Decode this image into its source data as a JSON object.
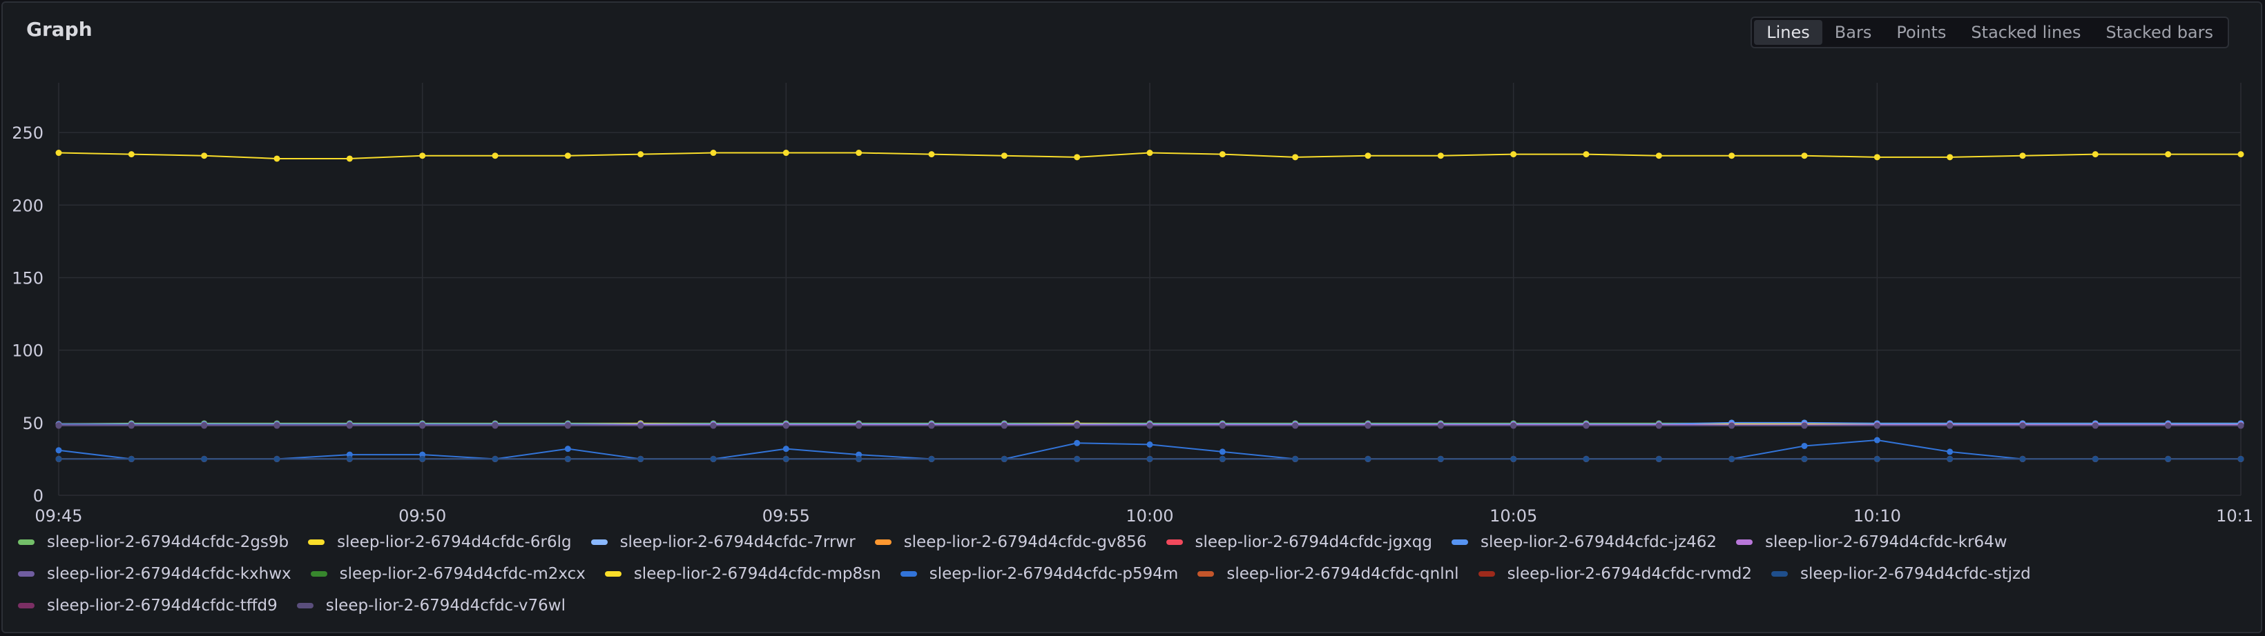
{
  "panel": {
    "title": "Graph"
  },
  "view_toggle": {
    "options": [
      "Lines",
      "Bars",
      "Points",
      "Stacked lines",
      "Stacked bars"
    ],
    "selected": "Lines"
  },
  "chart_data": {
    "type": "line",
    "title": "",
    "xlabel": "",
    "ylabel": "",
    "x": [
      "09:45",
      "09:46",
      "09:47",
      "09:48",
      "09:49",
      "09:50",
      "09:51",
      "09:52",
      "09:53",
      "09:54",
      "09:55",
      "09:56",
      "09:57",
      "09:58",
      "09:59",
      "10:00",
      "10:01",
      "10:02",
      "10:03",
      "10:04",
      "10:05",
      "10:06",
      "10:07",
      "10:08",
      "10:09",
      "10:10",
      "10:11",
      "10:12",
      "10:13",
      "10:14",
      "10:15"
    ],
    "x_tick_labels": [
      "09:45",
      "09:50",
      "09:55",
      "10:00",
      "10:05",
      "10:10",
      "10:1"
    ],
    "y_ticks": [
      0,
      50,
      100,
      150,
      200,
      250
    ],
    "ylim": [
      0,
      270
    ],
    "grid": true,
    "legend_position": "bottom",
    "series": [
      {
        "name": "sleep-lior-2-6794d4cfdc-2gs9b",
        "color": "#73bf69",
        "values": [
          49,
          49.5,
          49.5,
          49.5,
          49.5,
          49.5,
          49.5,
          49.5,
          49.5,
          49.5,
          49.5,
          49.5,
          49.5,
          49.5,
          49.5,
          49.5,
          49.5,
          49.5,
          49.5,
          49.5,
          49.5,
          49.5,
          49.5,
          49.5,
          49.5,
          49.5,
          49.5,
          49.5,
          49.5,
          49.5,
          49.5
        ]
      },
      {
        "name": "sleep-lior-2-6794d4cfdc-6r6lg",
        "color": "#fade2a",
        "values": [
          49,
          49,
          49,
          49,
          49,
          49,
          49,
          49,
          49.5,
          49,
          49,
          49,
          49,
          49,
          49.5,
          49,
          49,
          49,
          49,
          49,
          49,
          49,
          49,
          49,
          49,
          49,
          49,
          49,
          49,
          49,
          49
        ]
      },
      {
        "name": "sleep-lior-2-6794d4cfdc-7rrwr",
        "color": "#8ab8ff",
        "values": [
          48.5,
          48.5,
          48.5,
          48.5,
          48.5,
          48.5,
          48.5,
          48.5,
          48.5,
          48.5,
          48.5,
          48.5,
          48.5,
          48.5,
          48.5,
          48.5,
          48.5,
          48.5,
          48.5,
          48.5,
          48.5,
          48.5,
          48.5,
          48.5,
          48.5,
          48.5,
          48.5,
          48.5,
          48.5,
          48.5,
          48.5
        ]
      },
      {
        "name": "sleep-lior-2-6794d4cfdc-gv856",
        "color": "#ff9830",
        "values": [
          25,
          25,
          25,
          25,
          25,
          25,
          25,
          25,
          25,
          25,
          25,
          25,
          25,
          25,
          25,
          25,
          25,
          25,
          25,
          25,
          25,
          25,
          25,
          25,
          25,
          25,
          25,
          25,
          25,
          25,
          25
        ]
      },
      {
        "name": "sleep-lior-2-6794d4cfdc-jgxqg",
        "color": "#f2495c",
        "values": [
          25,
          25,
          25,
          25,
          25,
          25,
          25,
          25,
          25,
          25,
          25,
          25,
          25,
          25,
          25,
          25,
          25,
          25,
          25,
          25,
          25,
          25,
          25,
          25,
          25,
          25,
          25,
          25,
          25,
          25,
          25
        ]
      },
      {
        "name": "sleep-lior-2-6794d4cfdc-jz462",
        "color": "#5794f2",
        "values": [
          49,
          49,
          49,
          49,
          49,
          49,
          49,
          49,
          49,
          49,
          49,
          49,
          49,
          49,
          49,
          49,
          49,
          49,
          49,
          49,
          49,
          49,
          49,
          50,
          50,
          49.5,
          49.5,
          49.5,
          49.5,
          49.5,
          49.5
        ]
      },
      {
        "name": "sleep-lior-2-6794d4cfdc-kr64w",
        "color": "#b877d9",
        "values": [
          48.5,
          48.5,
          48.5,
          48.5,
          48.5,
          48.5,
          48.5,
          48.5,
          48.5,
          48.5,
          48.5,
          48.5,
          48.5,
          48.5,
          48.5,
          48.5,
          48.5,
          48.5,
          48.5,
          48.5,
          48.5,
          48.5,
          48.5,
          48.5,
          48.5,
          48.5,
          48.5,
          48.5,
          48.5,
          48.5,
          48.5
        ]
      },
      {
        "name": "sleep-lior-2-6794d4cfdc-kxhwx",
        "color": "#705da0",
        "values": [
          48.5,
          48.5,
          48.5,
          48.5,
          48.5,
          48.5,
          48.5,
          48.5,
          48,
          48,
          48,
          48,
          48,
          48,
          48,
          48,
          48,
          48,
          48,
          48,
          48,
          48,
          48,
          48,
          48,
          48,
          48,
          48,
          48,
          48,
          48
        ]
      },
      {
        "name": "sleep-lior-2-6794d4cfdc-m2xcx",
        "color": "#37872d",
        "values": [
          25,
          25,
          25,
          25,
          25,
          25,
          25,
          25,
          25,
          25,
          25,
          25,
          25,
          25,
          25,
          25,
          25,
          25,
          25,
          25,
          25,
          25,
          25,
          25,
          25,
          25,
          25,
          25,
          25,
          25,
          25
        ]
      },
      {
        "name": "sleep-lior-2-6794d4cfdc-mp8sn",
        "color": "#fade2a",
        "values": [
          236,
          235,
          234,
          232,
          232,
          234,
          234,
          234,
          235,
          236,
          236,
          236,
          235,
          234,
          233,
          236,
          235,
          233,
          234,
          234,
          235,
          235,
          234,
          234,
          234,
          233,
          233,
          234,
          235,
          235,
          235
        ]
      },
      {
        "name": "sleep-lior-2-6794d4cfdc-p594m",
        "color": "#3274d9",
        "values": [
          31,
          25,
          25,
          25,
          28,
          28,
          25,
          32,
          25,
          25,
          32,
          28,
          25,
          25,
          36,
          35,
          30,
          25,
          25,
          25,
          25,
          25,
          25,
          25,
          34,
          38,
          30,
          25,
          25,
          25,
          25
        ]
      },
      {
        "name": "sleep-lior-2-6794d4cfdc-qnlnl",
        "color": "#c4562b",
        "values": [
          25,
          25,
          25,
          25,
          25,
          25,
          25,
          25,
          25,
          25,
          25,
          25,
          25,
          25,
          25,
          25,
          25,
          25,
          25,
          25,
          25,
          25,
          25,
          25,
          25,
          25,
          25,
          25,
          25,
          25,
          25
        ]
      },
      {
        "name": "sleep-lior-2-6794d4cfdc-rvmd2",
        "color": "#9e2a1b",
        "values": [
          25,
          25,
          25,
          25,
          25,
          25,
          25,
          25,
          25,
          25,
          25,
          25,
          25,
          25,
          25,
          25,
          25,
          25,
          25,
          25,
          25,
          25,
          25,
          25,
          25,
          25,
          25,
          25,
          25,
          25,
          25
        ]
      },
      {
        "name": "sleep-lior-2-6794d4cfdc-stjzd",
        "color": "#1f4f8c",
        "values": [
          25,
          25,
          25,
          25,
          25,
          25,
          25,
          25,
          25,
          25,
          25,
          25,
          25,
          25,
          25,
          25,
          25,
          25,
          25,
          25,
          25,
          25,
          25,
          25,
          25,
          25,
          25,
          25,
          25,
          25,
          25
        ]
      },
      {
        "name": "sleep-lior-2-6794d4cfdc-tffd9",
        "color": "#7b2f64",
        "values": [
          48,
          48,
          48,
          48,
          48,
          48,
          48,
          48,
          48,
          48,
          48,
          48,
          48,
          48,
          48,
          48,
          48,
          48,
          48,
          48,
          48,
          48,
          48,
          48,
          48,
          48,
          48,
          48,
          48,
          48,
          48
        ]
      },
      {
        "name": "sleep-lior-2-6794d4cfdc-v76wl",
        "color": "#5a4e7c",
        "values": [
          48,
          48,
          48,
          48,
          48,
          48,
          48,
          48,
          48,
          48,
          48,
          48,
          48,
          48,
          48,
          48,
          48,
          48,
          48,
          48,
          48,
          48,
          48,
          48,
          48,
          48,
          48,
          48,
          48,
          48,
          48
        ]
      }
    ]
  }
}
